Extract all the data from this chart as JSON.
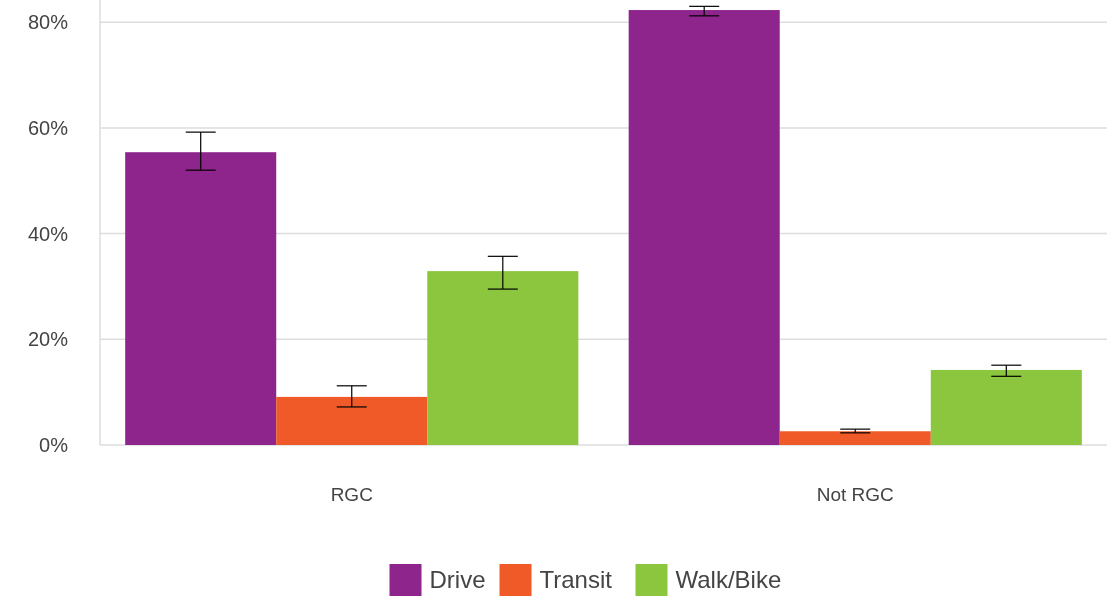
{
  "chart_data": {
    "type": "bar",
    "categories": [
      "RGC",
      "Not RGC"
    ],
    "series": [
      {
        "name": "Drive",
        "color": "#8e258d",
        "values": [
          55.4,
          82.3
        ],
        "errors": [
          [
            52.0,
            59.2
          ],
          [
            81.2,
            83.0
          ]
        ]
      },
      {
        "name": "Transit",
        "color": "#f05a28",
        "values": [
          9.1,
          2.6
        ],
        "errors": [
          [
            7.2,
            11.2
          ],
          [
            2.3,
            3.0
          ]
        ]
      },
      {
        "name": "Walk/Bike",
        "color": "#8cc63f",
        "values": [
          32.9,
          14.2
        ],
        "errors": [
          [
            29.5,
            35.7
          ],
          [
            13.0,
            15.1
          ]
        ]
      }
    ],
    "ylim": [
      0,
      84.2
    ],
    "yticks": [
      {
        "value": 0,
        "label": "0%"
      },
      {
        "value": 20,
        "label": "20%"
      },
      {
        "value": 40,
        "label": "40%"
      },
      {
        "value": 60,
        "label": "60%"
      },
      {
        "value": 80,
        "label": "80%"
      }
    ],
    "grid": "y",
    "legend": "bottom"
  }
}
